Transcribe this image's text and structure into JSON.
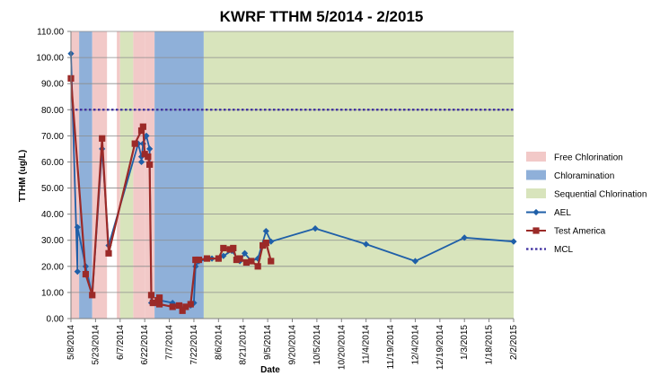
{
  "chart_data": {
    "type": "line",
    "title": "KWRF TTHM    5/2014 - 2/2015",
    "xlabel": "Date",
    "ylabel": "TTHM (ug/L)",
    "ylim": [
      0,
      110
    ],
    "y_ticks": [
      "0.00",
      "10.00",
      "20.00",
      "30.00",
      "40.00",
      "50.00",
      "60.00",
      "70.00",
      "80.00",
      "90.00",
      "100.00",
      "110.00"
    ],
    "x_range": [
      "2014-05-08",
      "2015-02-02"
    ],
    "x_ticks": [
      {
        "date": "2014-05-08",
        "label": "5/8/2014"
      },
      {
        "date": "2014-05-23",
        "label": "5/23/2014"
      },
      {
        "date": "2014-06-07",
        "label": "6/7/2014"
      },
      {
        "date": "2014-06-22",
        "label": "6/22/2014"
      },
      {
        "date": "2014-07-07",
        "label": "7/7/2014"
      },
      {
        "date": "2014-07-22",
        "label": "7/22/2014"
      },
      {
        "date": "2014-08-06",
        "label": "8/6/2014"
      },
      {
        "date": "2014-08-21",
        "label": "8/21/2014"
      },
      {
        "date": "2014-09-05",
        "label": "9/5/2014"
      },
      {
        "date": "2014-09-20",
        "label": "9/20/2014"
      },
      {
        "date": "2014-10-05",
        "label": "10/5/2014"
      },
      {
        "date": "2014-10-20",
        "label": "10/20/2014"
      },
      {
        "date": "2014-11-04",
        "label": "11/4/2014"
      },
      {
        "date": "2014-11-19",
        "label": "11/19/2014"
      },
      {
        "date": "2014-12-04",
        "label": "12/4/2014"
      },
      {
        "date": "2014-12-19",
        "label": "12/19/2014"
      },
      {
        "date": "2015-01-03",
        "label": "1/3/2015"
      },
      {
        "date": "2015-01-18",
        "label": "1/18/2015"
      },
      {
        "date": "2015-02-02",
        "label": "2/2/2015"
      }
    ],
    "grid": "horizontal",
    "legend_position": "right",
    "bands": [
      {
        "type": "Free Chlorination",
        "start": "2014-05-08",
        "end": "2014-05-13"
      },
      {
        "type": "Chloramination",
        "start": "2014-05-13",
        "end": "2014-05-21"
      },
      {
        "type": "Free Chlorination",
        "start": "2014-05-21",
        "end": "2014-05-30"
      },
      {
        "type": "Free Chlorination",
        "start": "2014-06-05",
        "end": "2014-06-07"
      },
      {
        "type": "Sequential Chlorination",
        "start": "2014-06-07",
        "end": "2014-06-15"
      },
      {
        "type": "Free Chlorination",
        "start": "2014-06-15",
        "end": "2014-06-22"
      },
      {
        "type": "Free Chlorination",
        "start": "2014-06-22",
        "end": "2014-06-28"
      },
      {
        "type": "Chloramination",
        "start": "2014-06-28",
        "end": "2014-07-28"
      },
      {
        "type": "Sequential Chlorination",
        "start": "2014-07-28",
        "end": "2015-02-02"
      }
    ],
    "band_colors": {
      "Free Chlorination": "#f2c9c8",
      "Chloramination": "#8fb0d9",
      "Sequential Chlorination": "#d8e4bc"
    },
    "series": [
      {
        "name": "AEL",
        "color": "#1f5fa8",
        "marker": "diamond",
        "points": [
          [
            "2014-05-08",
            101.5
          ],
          [
            "2014-05-12",
            18
          ],
          [
            "2014-05-12",
            35
          ],
          [
            "2014-05-17",
            20
          ],
          [
            "2014-05-21",
            9
          ],
          [
            "2014-05-27",
            65
          ],
          [
            "2014-05-31",
            28
          ],
          [
            "2014-06-18",
            67
          ],
          [
            "2014-06-20",
            62
          ],
          [
            "2014-06-20",
            60
          ],
          [
            "2014-06-21",
            67
          ],
          [
            "2014-06-23",
            70
          ],
          [
            "2014-06-25",
            65
          ],
          [
            "2014-06-26",
            6
          ],
          [
            "2014-06-29",
            6
          ],
          [
            "2014-07-01",
            7
          ],
          [
            "2014-07-09",
            6
          ],
          [
            "2014-07-12",
            5
          ],
          [
            "2014-07-16",
            4
          ],
          [
            "2014-07-20",
            5
          ],
          [
            "2014-07-22",
            6
          ],
          [
            "2014-07-23",
            20
          ],
          [
            "2014-07-25",
            22
          ],
          [
            "2014-08-02",
            23
          ],
          [
            "2014-08-06",
            23
          ],
          [
            "2014-08-09",
            24
          ],
          [
            "2014-08-14",
            26
          ],
          [
            "2014-08-19",
            22
          ],
          [
            "2014-08-22",
            25
          ],
          [
            "2014-08-26",
            22
          ],
          [
            "2014-08-30",
            23
          ],
          [
            "2014-09-04",
            33.5
          ],
          [
            "2014-09-07",
            29.5
          ],
          [
            "2014-10-04",
            34.5
          ],
          [
            "2014-11-04",
            28.5
          ],
          [
            "2014-12-04",
            22
          ],
          [
            "2015-01-03",
            31
          ],
          [
            "2015-02-02",
            29.5
          ]
        ]
      },
      {
        "name": "Test America",
        "color": "#9b2a28",
        "marker": "square",
        "points": [
          [
            "2014-05-08",
            92
          ],
          [
            "2014-05-17",
            17
          ],
          [
            "2014-05-21",
            9
          ],
          [
            "2014-05-27",
            69
          ],
          [
            "2014-05-31",
            25
          ],
          [
            "2014-06-16",
            67
          ],
          [
            "2014-06-20",
            72
          ],
          [
            "2014-06-21",
            73.5
          ],
          [
            "2014-06-22",
            63
          ],
          [
            "2014-06-24",
            62
          ],
          [
            "2014-06-25",
            59
          ],
          [
            "2014-06-26",
            9
          ],
          [
            "2014-06-27",
            6
          ],
          [
            "2014-06-30",
            7
          ],
          [
            "2014-07-01",
            8
          ],
          [
            "2014-07-01",
            5.5
          ],
          [
            "2014-07-09",
            4.5
          ],
          [
            "2014-07-13",
            5
          ],
          [
            "2014-07-15",
            3
          ],
          [
            "2014-07-17",
            4.5
          ],
          [
            "2014-07-20",
            5.5
          ],
          [
            "2014-07-23",
            22.5
          ],
          [
            "2014-07-25",
            22.5
          ],
          [
            "2014-07-30",
            23
          ],
          [
            "2014-08-06",
            23
          ],
          [
            "2014-08-09",
            27
          ],
          [
            "2014-08-13",
            26.5
          ],
          [
            "2014-08-15",
            27
          ],
          [
            "2014-08-17",
            22.5
          ],
          [
            "2014-08-19",
            23
          ],
          [
            "2014-08-23",
            21.5
          ],
          [
            "2014-08-26",
            22
          ],
          [
            "2014-08-30",
            20
          ],
          [
            "2014-09-02",
            28
          ],
          [
            "2014-09-04",
            29
          ],
          [
            "2014-09-07",
            22
          ]
        ]
      },
      {
        "name": "MCL",
        "color": "#3b2a9e",
        "style": "dotted",
        "value": 80
      }
    ],
    "legend": [
      {
        "label": "Free Chlorination",
        "kind": "band",
        "key": "Free Chlorination"
      },
      {
        "label": "Chloramination",
        "kind": "band",
        "key": "Chloramination"
      },
      {
        "label": "Sequential Chlorination",
        "kind": "band",
        "key": "Sequential Chlorination"
      },
      {
        "label": "AEL",
        "kind": "series",
        "key": "AEL"
      },
      {
        "label": "Test America",
        "kind": "series",
        "key": "Test America"
      },
      {
        "label": "MCL",
        "kind": "series",
        "key": "MCL"
      }
    ]
  }
}
